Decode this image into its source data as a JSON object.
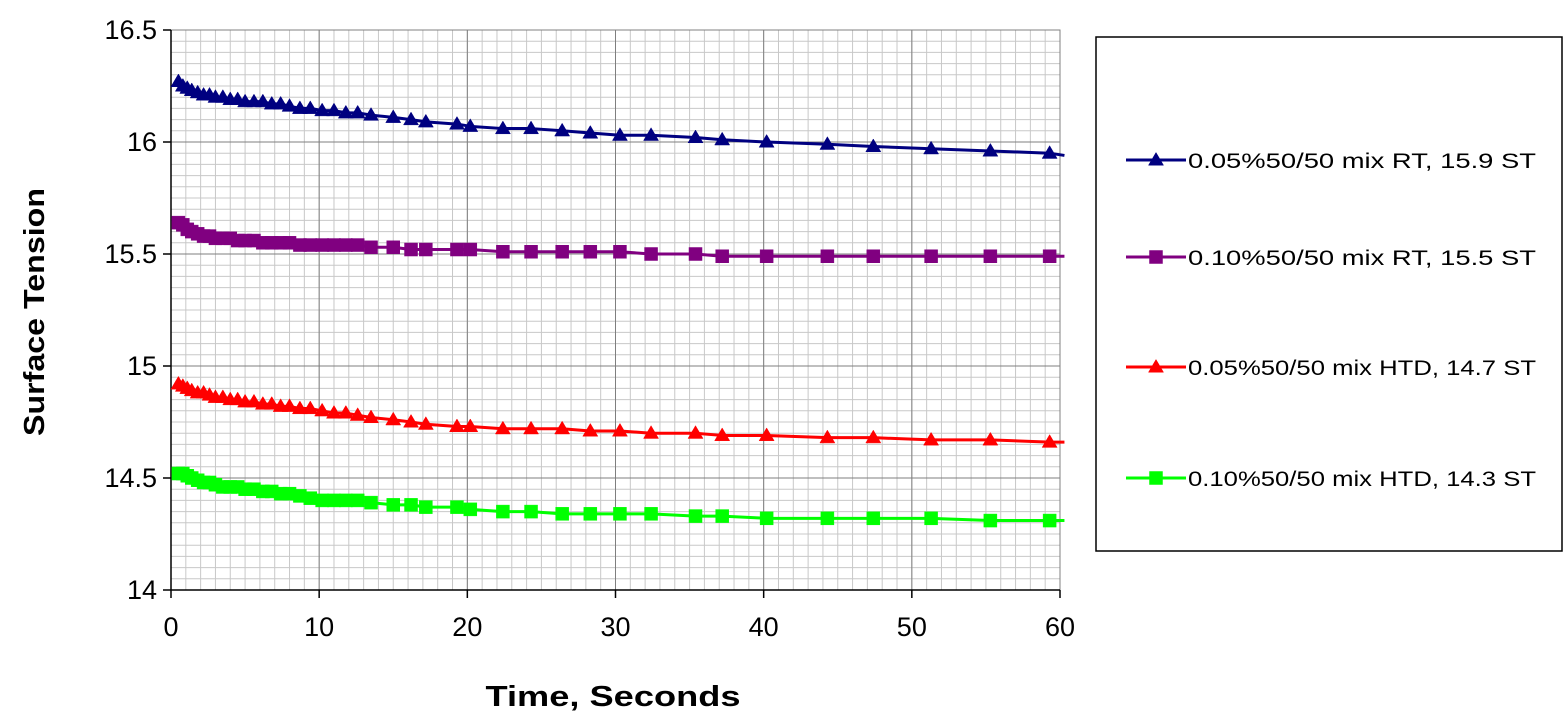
{
  "chart_data": {
    "type": "line",
    "title": "",
    "xlabel": "Time, Seconds",
    "ylabel": "Surface Tension",
    "xlim": [
      0,
      60
    ],
    "ylim": [
      14,
      16.5
    ],
    "xticks": [
      0,
      10,
      20,
      30,
      40,
      50,
      60
    ],
    "xtick_labels": [
      "0",
      "10",
      "20",
      "30",
      "40",
      "50",
      "60"
    ],
    "yticks": [
      14,
      14.5,
      15,
      15.5,
      16,
      16.5
    ],
    "ytick_labels": [
      "14",
      "14.5",
      "15",
      "15.5",
      "16",
      "16.5"
    ],
    "grid": true,
    "legend_position": "right",
    "series": [
      {
        "name": "0.05%50/50 mix RT, 15.9 ST",
        "color": "#000080",
        "marker": "triangle",
        "x": [
          0.5,
          0.8,
          1.1,
          1.4,
          1.8,
          2.2,
          2.6,
          3.0,
          3.5,
          4.0,
          4.5,
          5.0,
          5.6,
          6.2,
          6.8,
          7.4,
          8.0,
          8.7,
          9.4,
          10.2,
          11.0,
          11.8,
          12.6,
          13.5,
          15.0,
          16.2,
          17.2,
          19.3,
          20.2,
          22.4,
          24.3,
          26.4,
          28.3,
          30.3,
          32.4,
          35.4,
          37.2,
          40.2,
          44.3,
          47.4,
          51.3,
          55.3,
          59.3
        ],
        "y": [
          16.27,
          16.25,
          16.24,
          16.23,
          16.22,
          16.21,
          16.21,
          16.2,
          16.2,
          16.19,
          16.19,
          16.18,
          16.18,
          16.18,
          16.17,
          16.17,
          16.16,
          16.15,
          16.15,
          16.14,
          16.14,
          16.13,
          16.13,
          16.12,
          16.11,
          16.1,
          16.09,
          16.08,
          16.07,
          16.06,
          16.06,
          16.05,
          16.04,
          16.03,
          16.03,
          16.02,
          16.01,
          16.0,
          15.99,
          15.98,
          15.97,
          15.96,
          15.95
        ],
        "line_x": [
          60.3
        ],
        "line_y": [
          15.94
        ]
      },
      {
        "name": "0.10%50/50 mix RT, 15.5 ST",
        "color": "#800080",
        "marker": "square",
        "x": [
          0.5,
          0.8,
          1.1,
          1.4,
          1.8,
          2.2,
          2.6,
          3.0,
          3.5,
          4.0,
          4.5,
          5.0,
          5.6,
          6.2,
          6.8,
          7.4,
          8.0,
          8.7,
          9.4,
          10.2,
          11.0,
          11.8,
          12.6,
          13.5,
          15.0,
          16.2,
          17.2,
          19.3,
          20.2,
          22.4,
          24.3,
          26.4,
          28.3,
          30.3,
          32.4,
          35.4,
          37.2,
          40.2,
          44.3,
          47.4,
          51.3,
          55.3,
          59.3
        ],
        "y": [
          15.64,
          15.63,
          15.61,
          15.6,
          15.59,
          15.58,
          15.58,
          15.57,
          15.57,
          15.57,
          15.56,
          15.56,
          15.56,
          15.55,
          15.55,
          15.55,
          15.55,
          15.54,
          15.54,
          15.54,
          15.54,
          15.54,
          15.54,
          15.53,
          15.53,
          15.52,
          15.52,
          15.52,
          15.52,
          15.51,
          15.51,
          15.51,
          15.51,
          15.51,
          15.5,
          15.5,
          15.49,
          15.49,
          15.49,
          15.49,
          15.49,
          15.49,
          15.49
        ],
        "line_x": [
          60.3
        ],
        "line_y": [
          15.49
        ]
      },
      {
        "name": "0.05%50/50 mix HTD, 14.7 ST",
        "color": "#ff0000",
        "marker": "triangle",
        "x": [
          0.5,
          0.8,
          1.1,
          1.4,
          1.8,
          2.2,
          2.6,
          3.0,
          3.5,
          4.0,
          4.5,
          5.0,
          5.6,
          6.2,
          6.8,
          7.4,
          8.0,
          8.7,
          9.4,
          10.2,
          11.0,
          11.8,
          12.6,
          13.5,
          15.0,
          16.2,
          17.2,
          19.3,
          20.2,
          22.4,
          24.3,
          26.4,
          28.3,
          30.3,
          32.4,
          35.4,
          37.2,
          40.2,
          44.3,
          47.4,
          51.3,
          55.3,
          59.3
        ],
        "y": [
          14.92,
          14.91,
          14.9,
          14.89,
          14.88,
          14.88,
          14.87,
          14.86,
          14.86,
          14.85,
          14.85,
          14.84,
          14.84,
          14.83,
          14.83,
          14.82,
          14.82,
          14.81,
          14.81,
          14.8,
          14.79,
          14.79,
          14.78,
          14.77,
          14.76,
          14.75,
          14.74,
          14.73,
          14.73,
          14.72,
          14.72,
          14.72,
          14.71,
          14.71,
          14.7,
          14.7,
          14.69,
          14.69,
          14.68,
          14.68,
          14.67,
          14.67,
          14.66
        ],
        "line_x": [
          60.3
        ],
        "line_y": [
          14.66
        ]
      },
      {
        "name": "0.10%50/50 mix HTD, 14.3 ST",
        "color": "#00ff00",
        "marker": "square",
        "x": [
          0.5,
          0.8,
          1.1,
          1.4,
          1.8,
          2.2,
          2.6,
          3.0,
          3.5,
          4.0,
          4.5,
          5.0,
          5.6,
          6.2,
          6.8,
          7.4,
          8.0,
          8.7,
          9.4,
          10.2,
          11.0,
          11.8,
          12.6,
          13.5,
          15.0,
          16.2,
          17.2,
          19.3,
          20.2,
          22.4,
          24.3,
          26.4,
          28.3,
          30.3,
          32.4,
          35.4,
          37.2,
          40.2,
          44.3,
          47.4,
          51.3,
          55.3,
          59.3
        ],
        "y": [
          14.52,
          14.52,
          14.51,
          14.5,
          14.49,
          14.48,
          14.48,
          14.47,
          14.46,
          14.46,
          14.46,
          14.45,
          14.45,
          14.44,
          14.44,
          14.43,
          14.43,
          14.42,
          14.41,
          14.4,
          14.4,
          14.4,
          14.4,
          14.39,
          14.38,
          14.38,
          14.37,
          14.37,
          14.36,
          14.35,
          14.35,
          14.34,
          14.34,
          14.34,
          14.34,
          14.33,
          14.33,
          14.32,
          14.32,
          14.32,
          14.32,
          14.31,
          14.31
        ],
        "line_x": [
          60.3
        ],
        "line_y": [
          14.31
        ]
      }
    ]
  }
}
